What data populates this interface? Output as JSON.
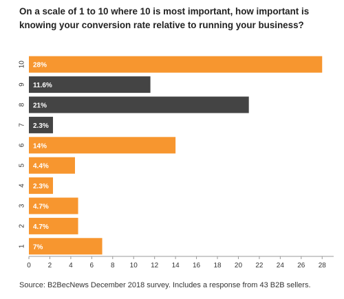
{
  "title": "On a scale of 1 to 10 where 10 is most important, how important is knowing your conversion rate relative to running your business?",
  "source": "Source: B2BecNews December 2018 survey. Includes a response from 43 B2B sellers.",
  "colors": {
    "orange": "#F7962F",
    "dark": "#444444",
    "axis": "#999999",
    "text": "#333333",
    "label": "#ffffff"
  },
  "chart_data": {
    "type": "bar",
    "orientation": "horizontal",
    "categories": [
      "10",
      "9",
      "8",
      "7",
      "6",
      "5",
      "4",
      "3",
      "2",
      "1"
    ],
    "values": [
      28,
      11.6,
      21,
      2.3,
      14,
      4.4,
      2.3,
      4.7,
      4.7,
      7
    ],
    "data_labels": [
      "28%",
      "11.6%",
      "21%",
      "2.3%",
      "14%",
      "4.4%",
      "2.3%",
      "4.7%",
      "4.7%",
      "7%"
    ],
    "bar_colors": [
      "orange",
      "dark",
      "dark",
      "dark",
      "orange",
      "orange",
      "orange",
      "orange",
      "orange",
      "orange"
    ],
    "xticks": [
      0,
      2,
      4,
      6,
      8,
      10,
      12,
      14,
      16,
      18,
      20,
      22,
      24,
      26,
      28
    ],
    "xlim": [
      0,
      29.1
    ],
    "xlabel": "",
    "ylabel": "",
    "grid": false,
    "legend": "none"
  }
}
